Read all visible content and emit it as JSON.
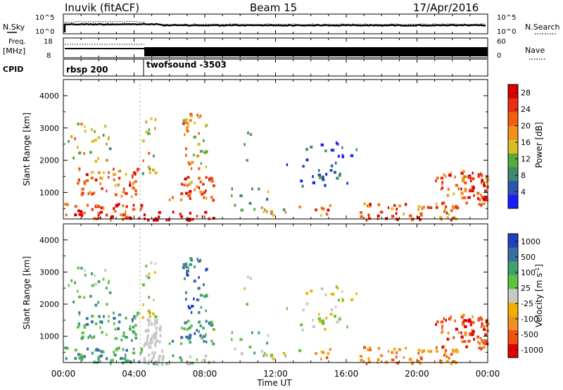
{
  "header": {
    "station": "Inuvik (fitACF)",
    "beam": "Beam 15",
    "date": "17/Apr/2016"
  },
  "strip_labels": {
    "nsky": "N.Sky",
    "nsky_hi": "10^5",
    "nsky_lo": "10^0",
    "nsearch": "N.Search",
    "nsearch_hi": "10^5",
    "nsearch_lo": "10^0",
    "freq": "Freq.",
    "freq_unit": "[MHz]",
    "freq_hi": "18",
    "freq_lo": "8",
    "nave": "Nave",
    "nave_hi": "60",
    "nave_lo": "0",
    "cpid": "CPID",
    "mode1": "rbsp 200",
    "mode2": "twofsound -3503"
  },
  "colors": {
    "power_scale": [
      "#1a1aff",
      "#2a55b0",
      "#3c8a6c",
      "#5aa83c",
      "#d8c020",
      "#f09020",
      "#f06010",
      "#e83010",
      "#d80000"
    ],
    "velocity_scale": [
      "#e00000",
      "#f05010",
      "#f09020",
      "#f0b000",
      "#c8c8c8",
      "#60c040",
      "#40a070",
      "#3a70a0",
      "#2040c0"
    ]
  },
  "chart_data": {
    "type": "heatmap",
    "x_label": "Time UT",
    "y_label": "Slant Range [km]",
    "x_ticks": [
      "00:00",
      "04:00",
      "08:00",
      "12:00",
      "16:00",
      "20:00",
      "00:00"
    ],
    "x_range_hours": [
      0,
      24
    ],
    "y_ticks": [
      "1000",
      "2000",
      "3000",
      "4000"
    ],
    "y_range_km": [
      180,
      4500
    ],
    "panels": [
      {
        "name": "power",
        "colorbar_label": "Power [dB]",
        "colorbar_ticks": [
          "4",
          "8",
          "12",
          "16",
          "20",
          "24",
          "28"
        ],
        "range": [
          0,
          30
        ]
      },
      {
        "name": "velocity",
        "colorbar_label": "Velocity [m s^-1]",
        "colorbar_ticks": [
          "1000",
          "500",
          "100",
          "25",
          "-25",
          "-100",
          "-500",
          "-1000"
        ],
        "range": [
          -1000,
          1000
        ]
      }
    ],
    "mode_change_hour": 4.5
  }
}
